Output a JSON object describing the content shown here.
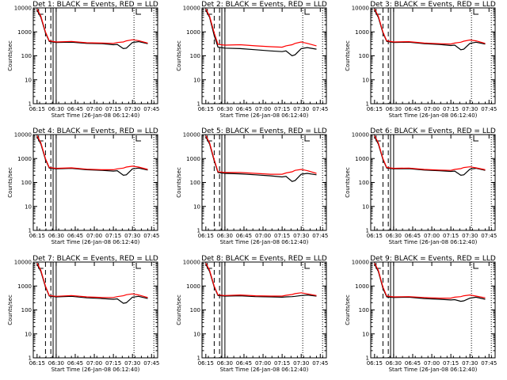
{
  "chart_data": [
    {
      "type": "line",
      "title": "Det 1: BLACK = Events, RED = LLD",
      "xlabel": "Start Time (26-Jan-08 06:12:40)",
      "ylabel": "Counts/sec",
      "xticks": [
        "06:15",
        "06:30",
        "06:45",
        "07:00",
        "07:15",
        "07:30",
        "07:45"
      ],
      "yticks": [
        "1",
        "10",
        "100",
        "1000",
        "10000"
      ],
      "ylim": [
        1,
        10000
      ],
      "yscale": "log",
      "series": [
        {
          "name": "Events",
          "color": "#000000",
          "x": [
            6.25,
            6.3,
            6.36,
            6.41,
            6.5,
            6.7,
            6.9,
            7.1,
            7.25,
            7.3,
            7.38,
            7.42,
            7.5,
            7.58,
            7.7
          ],
          "y": [
            8000,
            4000,
            900,
            400,
            360,
            370,
            330,
            320,
            290,
            300,
            200,
            210,
            360,
            390,
            320
          ]
        },
        {
          "name": "LLD",
          "color": "#ff0000",
          "x": [
            6.25,
            6.3,
            6.36,
            6.41,
            6.5,
            6.7,
            6.9,
            7.1,
            7.25,
            7.3,
            7.38,
            7.42,
            7.5,
            7.58,
            7.7
          ],
          "y": [
            9000,
            4500,
            1000,
            420,
            380,
            400,
            350,
            340,
            330,
            360,
            380,
            420,
            470,
            430,
            340
          ]
        }
      ]
    },
    {
      "type": "line",
      "title": "Det 2: BLACK = Events, RED = LLD",
      "xlabel": "Start Time (26-Jan-08 06:12:40)",
      "ylabel": "Counts/sec",
      "xticks": [
        "06:15",
        "06:30",
        "06:45",
        "07:00",
        "07:15",
        "07:30",
        "07:45"
      ],
      "yticks": [
        "1",
        "10",
        "100",
        "1000",
        "10000"
      ],
      "ylim": [
        1,
        10000
      ],
      "yscale": "log",
      "series": [
        {
          "name": "Events",
          "color": "#000000",
          "x": [
            6.25,
            6.3,
            6.36,
            6.41,
            6.5,
            6.7,
            6.9,
            7.1,
            7.25,
            7.3,
            7.38,
            7.42,
            7.5,
            7.58,
            7.7
          ],
          "y": [
            8000,
            4000,
            700,
            230,
            210,
            200,
            180,
            160,
            150,
            160,
            100,
            110,
            200,
            220,
            190
          ]
        },
        {
          "name": "LLD",
          "color": "#ff0000",
          "x": [
            6.25,
            6.3,
            6.36,
            6.41,
            6.5,
            6.7,
            6.9,
            7.1,
            7.25,
            7.3,
            7.38,
            7.42,
            7.5,
            7.58,
            7.7
          ],
          "y": [
            9000,
            4500,
            900,
            300,
            280,
            290,
            260,
            240,
            230,
            260,
            290,
            330,
            380,
            330,
            260
          ]
        }
      ]
    },
    {
      "type": "line",
      "title": "Det 3: BLACK = Events, RED = LLD",
      "xlabel": "Start Time (26-Jan-08 06:12:40)",
      "ylabel": "Counts/sec",
      "xticks": [
        "06:15",
        "06:30",
        "06:45",
        "07:00",
        "07:15",
        "07:30",
        "07:45"
      ],
      "yticks": [
        "1",
        "10",
        "100",
        "1000",
        "10000"
      ],
      "ylim": [
        1,
        10000
      ],
      "yscale": "log",
      "series": [
        {
          "name": "Events",
          "color": "#000000",
          "x": [
            6.25,
            6.3,
            6.36,
            6.41,
            6.5,
            6.7,
            6.9,
            7.1,
            7.25,
            7.3,
            7.38,
            7.42,
            7.5,
            7.58,
            7.7
          ],
          "y": [
            8000,
            4000,
            900,
            400,
            360,
            370,
            320,
            300,
            270,
            280,
            180,
            190,
            330,
            370,
            310
          ]
        },
        {
          "name": "LLD",
          "color": "#ff0000",
          "x": [
            6.25,
            6.3,
            6.36,
            6.41,
            6.5,
            6.7,
            6.9,
            7.1,
            7.25,
            7.3,
            7.38,
            7.42,
            7.5,
            7.58,
            7.7
          ],
          "y": [
            9000,
            4500,
            1000,
            420,
            380,
            390,
            340,
            320,
            310,
            340,
            370,
            410,
            460,
            420,
            330
          ]
        }
      ]
    },
    {
      "type": "line",
      "title": "Det 4: BLACK = Events, RED = LLD",
      "xlabel": "Start Time (26-Jan-08 06:12:40)",
      "ylabel": "Counts/sec",
      "xticks": [
        "06:15",
        "06:30",
        "06:45",
        "07:00",
        "07:15",
        "07:30",
        "07:45"
      ],
      "yticks": [
        "1",
        "10",
        "100",
        "1000",
        "10000"
      ],
      "ylim": [
        1,
        10000
      ],
      "yscale": "log",
      "series": [
        {
          "name": "Events",
          "color": "#000000",
          "x": [
            6.25,
            6.3,
            6.36,
            6.41,
            6.5,
            6.7,
            6.9,
            7.1,
            7.25,
            7.3,
            7.38,
            7.42,
            7.5,
            7.58,
            7.7
          ],
          "y": [
            8000,
            4000,
            900,
            400,
            370,
            390,
            340,
            320,
            300,
            310,
            200,
            210,
            370,
            400,
            330
          ]
        },
        {
          "name": "LLD",
          "color": "#ff0000",
          "x": [
            6.25,
            6.3,
            6.36,
            6.41,
            6.5,
            6.7,
            6.9,
            7.1,
            7.25,
            7.3,
            7.38,
            7.42,
            7.5,
            7.58,
            7.7
          ],
          "y": [
            9000,
            4500,
            1000,
            420,
            390,
            410,
            360,
            340,
            340,
            370,
            400,
            440,
            480,
            440,
            350
          ]
        }
      ]
    },
    {
      "type": "line",
      "title": "Det 5: BLACK = Events, RED = LLD",
      "xlabel": "Start Time (26-Jan-08 06:12:40)",
      "ylabel": "Counts/sec",
      "xticks": [
        "06:15",
        "06:30",
        "06:45",
        "07:00",
        "07:15",
        "07:30",
        "07:45"
      ],
      "yticks": [
        "1",
        "10",
        "100",
        "1000",
        "10000"
      ],
      "ylim": [
        1,
        10000
      ],
      "yscale": "log",
      "series": [
        {
          "name": "Events",
          "color": "#000000",
          "x": [
            6.25,
            6.3,
            6.36,
            6.41,
            6.5,
            6.7,
            6.9,
            7.1,
            7.25,
            7.3,
            7.38,
            7.42,
            7.5,
            7.58,
            7.7
          ],
          "y": [
            8000,
            4000,
            800,
            260,
            240,
            230,
            210,
            190,
            170,
            180,
            110,
            120,
            220,
            240,
            210
          ]
        },
        {
          "name": "LLD",
          "color": "#ff0000",
          "x": [
            6.25,
            6.3,
            6.36,
            6.41,
            6.5,
            6.7,
            6.9,
            7.1,
            7.25,
            7.3,
            7.38,
            7.42,
            7.5,
            7.58,
            7.7
          ],
          "y": [
            9000,
            4500,
            900,
            280,
            260,
            260,
            240,
            220,
            220,
            250,
            280,
            320,
            350,
            310,
            240
          ]
        }
      ]
    },
    {
      "type": "line",
      "title": "Det 6: BLACK = Events, RED = LLD",
      "xlabel": "Start Time (26-Jan-08 06:12:40)",
      "ylabel": "Counts/sec",
      "xticks": [
        "06:15",
        "06:30",
        "06:45",
        "07:00",
        "07:15",
        "07:30",
        "07:45"
      ],
      "yticks": [
        "1",
        "10",
        "100",
        "1000",
        "10000"
      ],
      "ylim": [
        1,
        10000
      ],
      "yscale": "log",
      "series": [
        {
          "name": "Events",
          "color": "#000000",
          "x": [
            6.25,
            6.3,
            6.36,
            6.41,
            6.5,
            6.7,
            6.9,
            7.1,
            7.25,
            7.3,
            7.38,
            7.42,
            7.5,
            7.58,
            7.7
          ],
          "y": [
            8000,
            4000,
            900,
            400,
            370,
            380,
            330,
            310,
            290,
            300,
            200,
            210,
            360,
            390,
            320
          ]
        },
        {
          "name": "LLD",
          "color": "#ff0000",
          "x": [
            6.25,
            6.3,
            6.36,
            6.41,
            6.5,
            6.7,
            6.9,
            7.1,
            7.25,
            7.3,
            7.38,
            7.42,
            7.5,
            7.58,
            7.7
          ],
          "y": [
            9000,
            4500,
            1000,
            420,
            390,
            400,
            350,
            330,
            320,
            350,
            380,
            420,
            450,
            410,
            340
          ]
        }
      ]
    },
    {
      "type": "line",
      "title": "Det 7: BLACK = Events, RED = LLD",
      "xlabel": "Start Time (26-Jan-08 06:12:40)",
      "ylabel": "Counts/sec",
      "xticks": [
        "06:15",
        "06:30",
        "06:45",
        "07:00",
        "07:15",
        "07:30",
        "07:45"
      ],
      "yticks": [
        "1",
        "10",
        "100",
        "1000",
        "10000"
      ],
      "ylim": [
        1,
        10000
      ],
      "yscale": "log",
      "series": [
        {
          "name": "Events",
          "color": "#000000",
          "x": [
            6.25,
            6.3,
            6.36,
            6.41,
            6.5,
            6.7,
            6.9,
            7.1,
            7.25,
            7.3,
            7.38,
            7.42,
            7.5,
            7.58,
            7.7
          ],
          "y": [
            8000,
            4000,
            900,
            380,
            350,
            370,
            320,
            300,
            280,
            290,
            190,
            200,
            340,
            370,
            300
          ]
        },
        {
          "name": "LLD",
          "color": "#ff0000",
          "x": [
            6.25,
            6.3,
            6.36,
            6.41,
            6.5,
            6.7,
            6.9,
            7.1,
            7.25,
            7.3,
            7.38,
            7.42,
            7.5,
            7.58,
            7.7
          ],
          "y": [
            9000,
            4500,
            1000,
            400,
            370,
            400,
            350,
            330,
            330,
            360,
            390,
            430,
            470,
            420,
            330
          ]
        }
      ]
    },
    {
      "type": "line",
      "title": "Det 8: BLACK = Events, RED = LLD",
      "xlabel": "Start Time (26-Jan-08 06:12:40)",
      "ylabel": "Counts/sec",
      "xticks": [
        "06:15",
        "06:30",
        "06:45",
        "07:00",
        "07:15",
        "07:30",
        "07:45"
      ],
      "yticks": [
        "1",
        "10",
        "100",
        "1000",
        "10000"
      ],
      "ylim": [
        1,
        10000
      ],
      "yscale": "log",
      "series": [
        {
          "name": "Events",
          "color": "#000000",
          "x": [
            6.25,
            6.3,
            6.36,
            6.41,
            6.5,
            6.7,
            6.9,
            7.1,
            7.25,
            7.3,
            7.38,
            7.42,
            7.5,
            7.58,
            7.7
          ],
          "y": [
            8000,
            4000,
            900,
            400,
            380,
            390,
            360,
            350,
            340,
            350,
            360,
            370,
            400,
            420,
            380
          ]
        },
        {
          "name": "LLD",
          "color": "#ff0000",
          "x": [
            6.25,
            6.3,
            6.36,
            6.41,
            6.5,
            6.7,
            6.9,
            7.1,
            7.25,
            7.3,
            7.38,
            7.42,
            7.5,
            7.58,
            7.7
          ],
          "y": [
            9000,
            4500,
            1000,
            420,
            400,
            420,
            390,
            380,
            380,
            410,
            440,
            480,
            520,
            470,
            400
          ]
        }
      ]
    },
    {
      "type": "line",
      "title": "Det 9: BLACK = Events, RED = LLD",
      "xlabel": "Start Time (26-Jan-08 06:12:40)",
      "ylabel": "Counts/sec",
      "xticks": [
        "06:15",
        "06:30",
        "06:45",
        "07:00",
        "07:15",
        "07:30",
        "07:45"
      ],
      "yticks": [
        "1",
        "10",
        "100",
        "1000",
        "10000"
      ],
      "ylim": [
        1,
        10000
      ],
      "yscale": "log",
      "series": [
        {
          "name": "Events",
          "color": "#000000",
          "x": [
            6.25,
            6.3,
            6.36,
            6.41,
            6.5,
            6.7,
            6.9,
            7.1,
            7.25,
            7.3,
            7.38,
            7.42,
            7.5,
            7.58,
            7.7
          ],
          "y": [
            8000,
            4000,
            800,
            350,
            330,
            340,
            300,
            280,
            260,
            270,
            230,
            240,
            310,
            340,
            280
          ]
        },
        {
          "name": "LLD",
          "color": "#ff0000",
          "x": [
            6.25,
            6.3,
            6.36,
            6.41,
            6.5,
            6.7,
            6.9,
            7.1,
            7.25,
            7.3,
            7.38,
            7.42,
            7.5,
            7.58,
            7.7
          ],
          "y": [
            9000,
            4500,
            900,
            380,
            350,
            360,
            330,
            310,
            310,
            340,
            360,
            390,
            420,
            380,
            320
          ]
        }
      ]
    }
  ]
}
